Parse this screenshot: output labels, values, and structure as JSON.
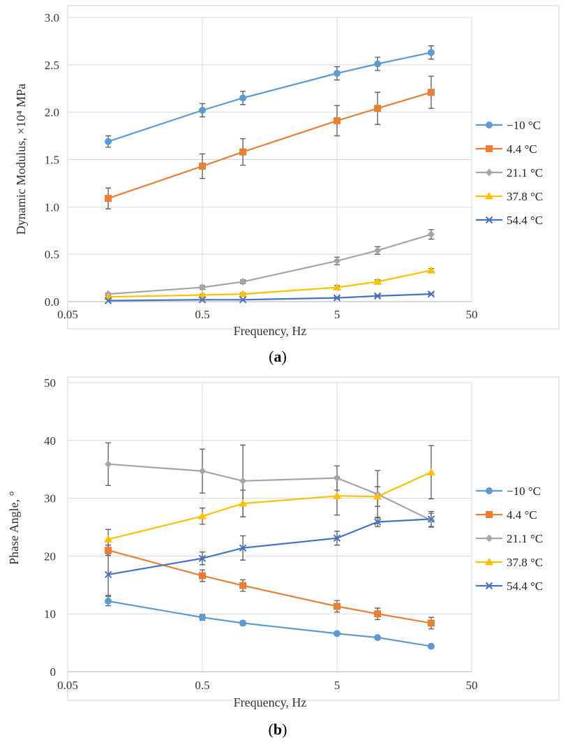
{
  "chart_data": [
    {
      "type": "line",
      "caption_open": "(",
      "caption_letter": "a",
      "caption_close": ")",
      "xlabel": "Frequency, Hz",
      "ylabel": "Dynamic Modulus, ×10⁴ MPa",
      "xscale": "log",
      "xlim": [
        0.05,
        50
      ],
      "ylim": [
        0,
        3
      ],
      "xticks": [
        0.05,
        0.5,
        5,
        50
      ],
      "xtick_labels": [
        "0.05",
        "0.5",
        "5",
        "50"
      ],
      "yticks": [
        0,
        0.5,
        1,
        1.5,
        2,
        2.5,
        3
      ],
      "ytick_labels": [
        "0.0",
        "0.5",
        "1.0",
        "1.5",
        "2.0",
        "2.5",
        "3.0"
      ],
      "grid": true,
      "legend_position": "right",
      "x": [
        0.1,
        0.5,
        1,
        5,
        10,
        25
      ],
      "series": [
        {
          "name": "−10 °C",
          "color": "#5B9BD5",
          "marker": "circle",
          "values": [
            1.69,
            2.02,
            2.15,
            2.41,
            2.51,
            2.63
          ],
          "errors": [
            0.06,
            0.07,
            0.07,
            0.07,
            0.07,
            0.07
          ]
        },
        {
          "name": "4.4 °C",
          "color": "#ED7D31",
          "marker": "square",
          "values": [
            1.09,
            1.43,
            1.58,
            1.91,
            2.04,
            2.21
          ],
          "errors": [
            0.11,
            0.13,
            0.14,
            0.16,
            0.17,
            0.17
          ]
        },
        {
          "name": "21.1 °C",
          "color": "#A5A5A5",
          "marker": "diamond",
          "values": [
            0.08,
            0.15,
            0.21,
            0.43,
            0.54,
            0.71
          ],
          "errors": [
            0.01,
            0.02,
            0.02,
            0.04,
            0.04,
            0.05
          ]
        },
        {
          "name": "37.8 °C",
          "color": "#FFC000",
          "marker": "triangle",
          "values": [
            0.05,
            0.07,
            0.08,
            0.15,
            0.21,
            0.33
          ],
          "errors": [
            0.01,
            0.01,
            0.01,
            0.02,
            0.02,
            0.02
          ]
        },
        {
          "name": "54.4 °C",
          "color": "#4472C4",
          "marker": "x",
          "values": [
            0.01,
            0.02,
            0.02,
            0.04,
            0.06,
            0.08
          ],
          "errors": [
            0.0,
            0.0,
            0.0,
            0.01,
            0.01,
            0.01
          ]
        }
      ]
    },
    {
      "type": "line",
      "caption_open": "(",
      "caption_letter": "b",
      "caption_close": ")",
      "xlabel": "Frequency, Hz",
      "ylabel": "Phase Angle, °",
      "xscale": "log",
      "xlim": [
        0.05,
        50
      ],
      "ylim": [
        0,
        50
      ],
      "xticks": [
        0.05,
        0.5,
        5,
        50
      ],
      "xtick_labels": [
        "0.05",
        "0.5",
        "5",
        "50"
      ],
      "yticks": [
        0,
        10,
        20,
        30,
        40,
        50
      ],
      "ytick_labels": [
        "0",
        "10",
        "20",
        "30",
        "40",
        "50"
      ],
      "grid": true,
      "legend_position": "right",
      "x": [
        0.1,
        0.5,
        1,
        5,
        10,
        25
      ],
      "series": [
        {
          "name": "−10 °C",
          "color": "#5B9BD5",
          "marker": "circle",
          "values": [
            12.2,
            9.4,
            8.4,
            6.6,
            5.9,
            4.4
          ],
          "errors": [
            0.8,
            0.5,
            0.4,
            0.3,
            0.3,
            0.2
          ]
        },
        {
          "name": "4.4 °C",
          "color": "#ED7D31",
          "marker": "square",
          "values": [
            21.0,
            16.6,
            14.9,
            11.3,
            10.0,
            8.4
          ],
          "errors": [
            0.9,
            1.0,
            1.0,
            1.0,
            1.0,
            1.0
          ]
        },
        {
          "name": "21.1 °C",
          "color": "#A5A5A5",
          "marker": "diamond",
          "values": [
            35.9,
            34.7,
            33.0,
            33.5,
            30.7,
            26.2
          ],
          "errors": [
            3.7,
            3.8,
            6.2,
            2.1,
            4.1,
            1.2
          ]
        },
        {
          "name": "37.8 °C",
          "color": "#FFC000",
          "marker": "triangle",
          "values": [
            22.9,
            26.9,
            29.1,
            30.4,
            30.3,
            34.5
          ],
          "errors": [
            1.7,
            1.4,
            2.3,
            3.3,
            1.7,
            4.6
          ]
        },
        {
          "name": "54.4 °C",
          "color": "#4472C4",
          "marker": "x",
          "values": [
            16.8,
            19.6,
            21.4,
            23.1,
            25.9,
            26.4
          ],
          "errors": [
            3.6,
            1.1,
            2.1,
            1.2,
            0.8,
            1.3
          ]
        }
      ]
    }
  ]
}
